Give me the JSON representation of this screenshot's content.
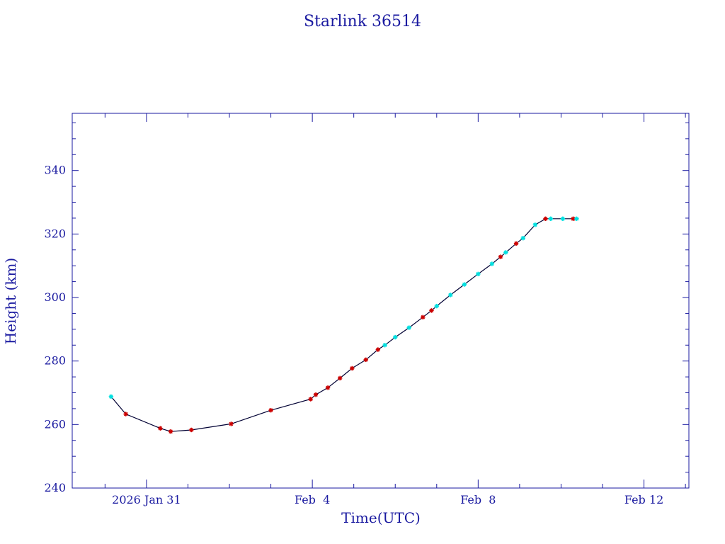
{
  "chart_data": {
    "type": "line",
    "title": "Starlink 36514",
    "xlabel": "Time(UTC)",
    "ylabel": "Height (km)",
    "xlim": [
      "2026-01-29 05:00",
      "2026-02-13 02:00"
    ],
    "ylim": [
      240,
      358
    ],
    "x_ticks": [
      {
        "date": "2026-01-31 00:00",
        "label": "2026 Jan 31"
      },
      {
        "date": "2026-02-04 00:00",
        "label": "Feb  4"
      },
      {
        "date": "2026-02-08 00:00",
        "label": "Feb  8"
      },
      {
        "date": "2026-02-12 00:00",
        "label": "Feb 12"
      }
    ],
    "y_ticks": [
      240,
      260,
      280,
      300,
      320,
      340
    ],
    "grid": false,
    "colors": {
      "axes": "#1a1aa0",
      "line": "#000033",
      "marker_red": "#cc0000",
      "marker_cyan": "#00e0e0"
    },
    "series": [
      {
        "points": [
          {
            "x": "2026-01-30 03:30",
            "y": 268.8,
            "m": "cyan"
          },
          {
            "x": "2026-01-30 12:00",
            "y": 263.3,
            "m": "red"
          },
          {
            "x": "2026-01-31 08:00",
            "y": 258.8,
            "m": "red"
          },
          {
            "x": "2026-01-31 14:00",
            "y": 257.8,
            "m": "red"
          },
          {
            "x": "2026-02-01 02:00",
            "y": 258.3,
            "m": "red"
          },
          {
            "x": "2026-02-02 01:00",
            "y": 260.2,
            "m": "red"
          },
          {
            "x": "2026-02-03 00:00",
            "y": 264.5,
            "m": "red"
          },
          {
            "x": "2026-02-03 23:00",
            "y": 268.0,
            "m": "red"
          },
          {
            "x": "2026-02-04 02:00",
            "y": 269.4,
            "m": "red"
          },
          {
            "x": "2026-02-04 09:00",
            "y": 271.6,
            "m": "red"
          },
          {
            "x": "2026-02-04 16:00",
            "y": 274.6,
            "m": "red"
          },
          {
            "x": "2026-02-04 23:00",
            "y": 277.7,
            "m": "red"
          },
          {
            "x": "2026-02-05 07:00",
            "y": 280.4,
            "m": "red"
          },
          {
            "x": "2026-02-05 14:00",
            "y": 283.6,
            "m": "red"
          },
          {
            "x": "2026-02-05 18:00",
            "y": 285.0,
            "m": "cyan"
          },
          {
            "x": "2026-02-06 00:00",
            "y": 287.5,
            "m": "cyan"
          },
          {
            "x": "2026-02-06 08:00",
            "y": 290.5,
            "m": "cyan"
          },
          {
            "x": "2026-02-06 16:00",
            "y": 293.8,
            "m": "red"
          },
          {
            "x": "2026-02-06 21:00",
            "y": 295.9,
            "m": "red"
          },
          {
            "x": "2026-02-07 00:00",
            "y": 297.3,
            "m": "cyan"
          },
          {
            "x": "2026-02-07 08:00",
            "y": 300.8,
            "m": "cyan"
          },
          {
            "x": "2026-02-07 16:00",
            "y": 304.1,
            "m": "cyan"
          },
          {
            "x": "2026-02-08 00:00",
            "y": 307.4,
            "m": "cyan"
          },
          {
            "x": "2026-02-08 08:00",
            "y": 310.6,
            "m": "cyan"
          },
          {
            "x": "2026-02-08 13:00",
            "y": 312.8,
            "m": "red"
          },
          {
            "x": "2026-02-08 16:00",
            "y": 314.2,
            "m": "cyan"
          },
          {
            "x": "2026-02-08 22:00",
            "y": 317.0,
            "m": "red"
          },
          {
            "x": "2026-02-09 02:00",
            "y": 318.7,
            "m": "cyan"
          },
          {
            "x": "2026-02-09 09:00",
            "y": 322.9,
            "m": "cyan"
          },
          {
            "x": "2026-02-09 15:00",
            "y": 324.8,
            "m": "red"
          },
          {
            "x": "2026-02-09 18:00",
            "y": 324.8,
            "m": "cyan"
          },
          {
            "x": "2026-02-10 01:00",
            "y": 324.8,
            "m": "cyan"
          },
          {
            "x": "2026-02-10 07:00",
            "y": 324.8,
            "m": "red"
          },
          {
            "x": "2026-02-10 09:00",
            "y": 324.8,
            "m": "cyan"
          }
        ]
      }
    ]
  }
}
